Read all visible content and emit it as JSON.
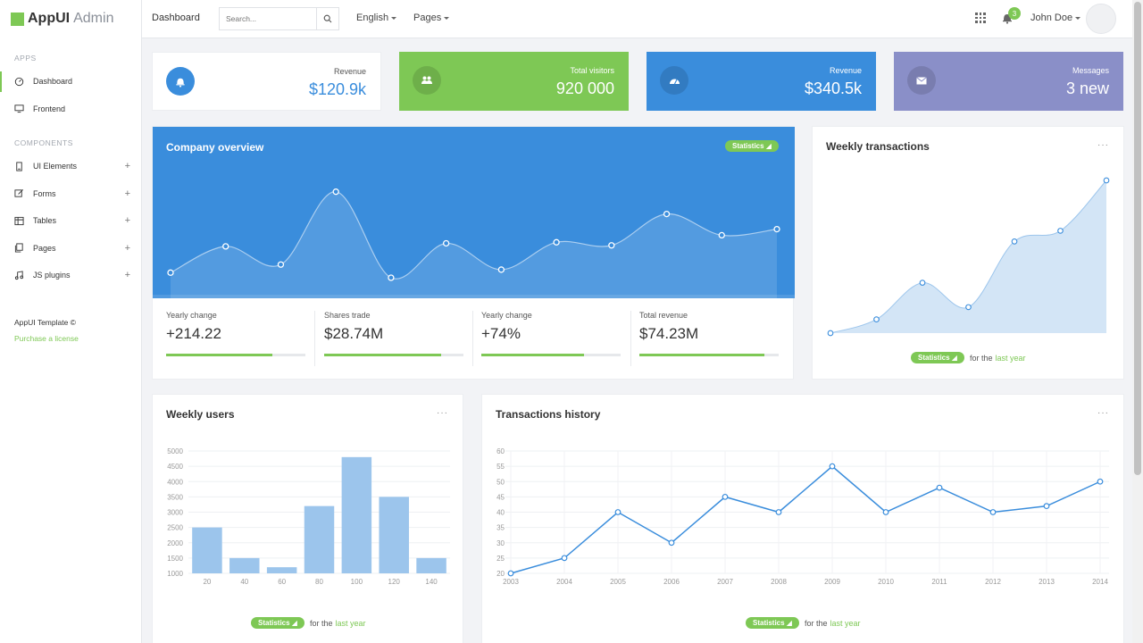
{
  "brand": {
    "name": "AppUI",
    "sub": "Admin"
  },
  "sidebar": {
    "section_apps": "APPS",
    "apps": [
      {
        "label": "Dashboard",
        "icon": "gauge-icon"
      },
      {
        "label": "Frontend",
        "icon": "monitor-icon"
      }
    ],
    "section_components": "COMPONENTS",
    "components": [
      {
        "label": "UI Elements",
        "icon": "phone-icon"
      },
      {
        "label": "Forms",
        "icon": "edit-icon"
      },
      {
        "label": "Tables",
        "icon": "table-icon"
      },
      {
        "label": "Pages",
        "icon": "copy-icon"
      },
      {
        "label": "JS plugins",
        "icon": "music-icon"
      }
    ],
    "plus": "+",
    "footer_title": "AppUI Template ©",
    "footer_link": "Purchase a license"
  },
  "header": {
    "title": "Dashboard",
    "search_placeholder": "Search...",
    "menu_english": "English",
    "menu_pages": "Pages",
    "notifications": "3",
    "user": "John Doe"
  },
  "stats": [
    {
      "label": "Revenue",
      "value": "$120.9k",
      "icon": "bell-icon",
      "bg": "#ffffff",
      "accent": "#3a8ddc"
    },
    {
      "label": "Total visitors",
      "value": "920 000",
      "icon": "users-icon",
      "bg": "#7ec855"
    },
    {
      "label": "Revenue",
      "value": "$340.5k",
      "icon": "dashboard-icon",
      "bg": "#3a8ddc"
    },
    {
      "label": "Messages",
      "value": "3 new",
      "icon": "envelope-icon",
      "bg": "#8a8fc8"
    }
  ],
  "overview": {
    "title": "Company overview",
    "pill": "Statistics ◢",
    "metrics": [
      {
        "label": "Yearly change",
        "value": "+214.22",
        "fill": 0.76
      },
      {
        "label": "Shares trade",
        "value": "$28.74M",
        "fill": 0.84
      },
      {
        "label": "Yearly change",
        "value": "+74%",
        "fill": 0.74
      },
      {
        "label": "Total revenue",
        "value": "$74.23M",
        "fill": 0.9
      }
    ]
  },
  "weekly_transactions": {
    "title": "Weekly transactions",
    "dots": "···",
    "pill": "Statistics ◢",
    "for_the": "for the",
    "link": "last year"
  },
  "weekly_users": {
    "title": "Weekly users",
    "dots": "···",
    "pill": "Statistics ◢",
    "for_the": "for the",
    "link": "last year"
  },
  "transactions_history": {
    "title": "Transactions history",
    "dots": "···",
    "pill": "Statistics ◢",
    "for_the": "for the",
    "link": "last year"
  },
  "chart_data": [
    {
      "type": "area",
      "chart": "company-overview",
      "x": [
        1,
        2,
        3,
        4,
        5,
        6,
        7,
        8,
        9,
        10,
        11,
        12
      ],
      "values": [
        2,
        4.6,
        2.8,
        10,
        1.5,
        4.9,
        2.3,
        5,
        4.7,
        7.8,
        5.7,
        6.3
      ],
      "ylim": [
        0,
        12
      ],
      "grid": false
    },
    {
      "type": "area",
      "chart": "weekly-transactions",
      "x": [
        1,
        2,
        3,
        4,
        5,
        6,
        7
      ],
      "values": [
        0,
        9,
        33,
        17,
        60,
        67,
        100
      ],
      "ylim": [
        0,
        100
      ],
      "grid": false
    },
    {
      "type": "bar",
      "chart": "weekly-users",
      "categories": [
        "20",
        "40",
        "60",
        "80",
        "100",
        "120",
        "140"
      ],
      "values": [
        2500,
        1500,
        1200,
        3200,
        4800,
        3500,
        1500
      ],
      "ylim": [
        1000,
        5000
      ],
      "yticks": [
        "1000",
        "1500",
        "2000",
        "2500",
        "3000",
        "3500",
        "4000",
        "4500",
        "5000"
      ],
      "grid": true
    },
    {
      "type": "line",
      "chart": "transactions-history",
      "categories": [
        "2003",
        "2004",
        "2005",
        "2006",
        "2007",
        "2008",
        "2009",
        "2010",
        "2011",
        "2012",
        "2013",
        "2014"
      ],
      "values": [
        20,
        25,
        40,
        30,
        45,
        40,
        55,
        40,
        48,
        40,
        42,
        50
      ],
      "ylim": [
        20,
        60
      ],
      "yticks": [
        "20",
        "25",
        "30",
        "35",
        "40",
        "45",
        "50",
        "55",
        "60"
      ],
      "grid": true
    }
  ]
}
